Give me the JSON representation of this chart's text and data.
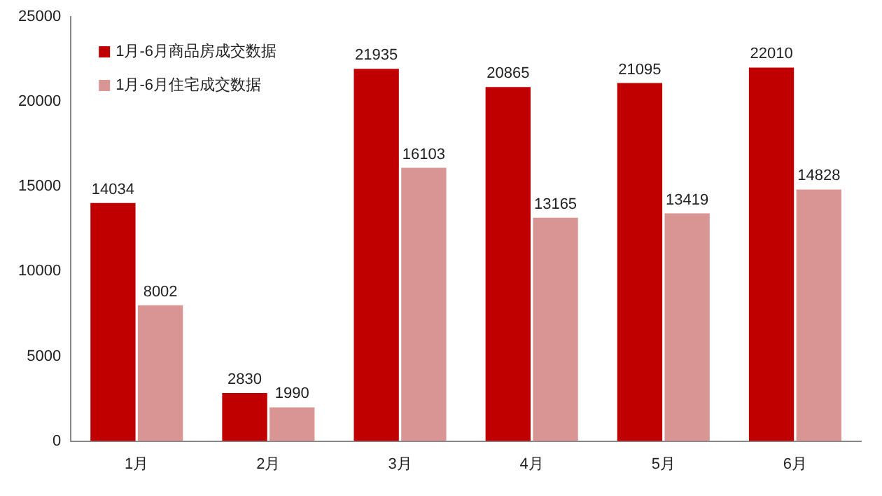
{
  "chart_data": {
    "type": "bar",
    "categories": [
      "1月",
      "2月",
      "3月",
      "4月",
      "5月",
      "6月"
    ],
    "series": [
      {
        "name": "1月-6月商品房成交数据",
        "color": "#c00000",
        "values": [
          14034,
          2830,
          21935,
          20865,
          21095,
          22010
        ]
      },
      {
        "name": "1月-6月住宅成交数据",
        "color": "#d99594",
        "values": [
          8002,
          1990,
          16103,
          13165,
          13419,
          14828
        ]
      }
    ],
    "ylim": [
      0,
      25000
    ],
    "yticks": [
      0,
      5000,
      10000,
      15000,
      20000,
      25000
    ],
    "grid": false,
    "legend": "top left",
    "data_labels": true
  }
}
